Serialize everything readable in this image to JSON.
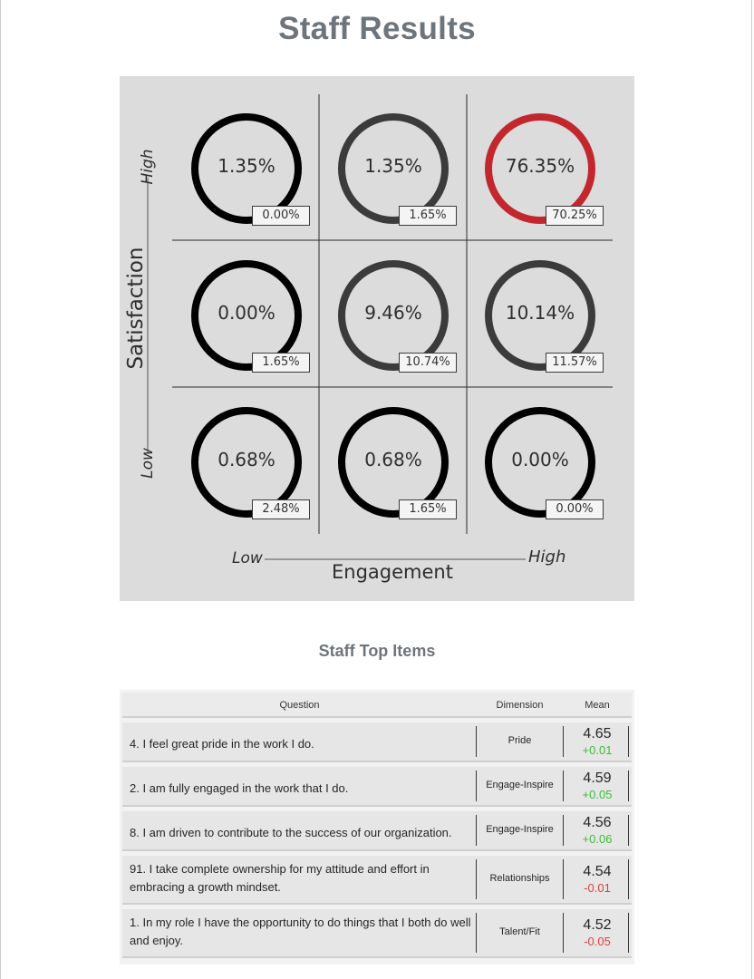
{
  "title": "Staff Results",
  "matrix": {
    "y_axis": {
      "label": "Satisfaction",
      "low": "Low",
      "high": "High"
    },
    "x_axis": {
      "label": "Engagement",
      "low": "Low",
      "high": "High"
    },
    "cells": [
      {
        "pct": "1.35%",
        "box": "0.00%",
        "fraction": 0.0135,
        "color": "#000000"
      },
      {
        "pct": "1.35%",
        "box": "1.65%",
        "fraction": 0.0135,
        "color": "#3b3b3b"
      },
      {
        "pct": "76.35%",
        "box": "70.25%",
        "fraction": 0.7635,
        "color": "#c3272e"
      },
      {
        "pct": "0.00%",
        "box": "1.65%",
        "fraction": 0.0,
        "color": "#000000"
      },
      {
        "pct": "9.46%",
        "box": "10.74%",
        "fraction": 0.0946,
        "color": "#3b3b3b"
      },
      {
        "pct": "10.14%",
        "box": "11.57%",
        "fraction": 0.1014,
        "color": "#3b3b3b"
      },
      {
        "pct": "0.68%",
        "box": "2.48%",
        "fraction": 0.0068,
        "color": "#000000"
      },
      {
        "pct": "0.68%",
        "box": "1.65%",
        "fraction": 0.0068,
        "color": "#000000"
      },
      {
        "pct": "0.00%",
        "box": "0.00%",
        "fraction": 0.0,
        "color": "#000000"
      }
    ]
  },
  "top_items": {
    "title": "Staff Top Items",
    "headers": {
      "question": "Question",
      "dimension": "Dimension",
      "mean": "Mean"
    },
    "rows": [
      {
        "question": "4. I feel great pride in the work I do.",
        "dimension": "Pride",
        "mean": "4.65",
        "delta": "+0.01",
        "delta_color": "#3dbb3d"
      },
      {
        "question": "2. I am fully engaged in the work that I do.",
        "dimension": "Engage-Inspire",
        "mean": "4.59",
        "delta": "+0.05",
        "delta_color": "#3dbb3d"
      },
      {
        "question": "8. I am driven to contribute to the success of our organization.",
        "dimension": "Engage-Inspire",
        "mean": "4.56",
        "delta": "+0.06",
        "delta_color": "#3dbb3d"
      },
      {
        "question": "91. I take complete ownership for my attitude and effort in embracing a growth mindset.",
        "dimension": "Relationships",
        "mean": "4.54",
        "delta": "-0.01",
        "delta_color": "#e0403a"
      },
      {
        "question": "1. In my role I have the opportunity to do things that I both do well and enjoy.",
        "dimension": "Talent/Fit",
        "mean": "4.52",
        "delta": "-0.05",
        "delta_color": "#e0403a"
      }
    ]
  }
}
